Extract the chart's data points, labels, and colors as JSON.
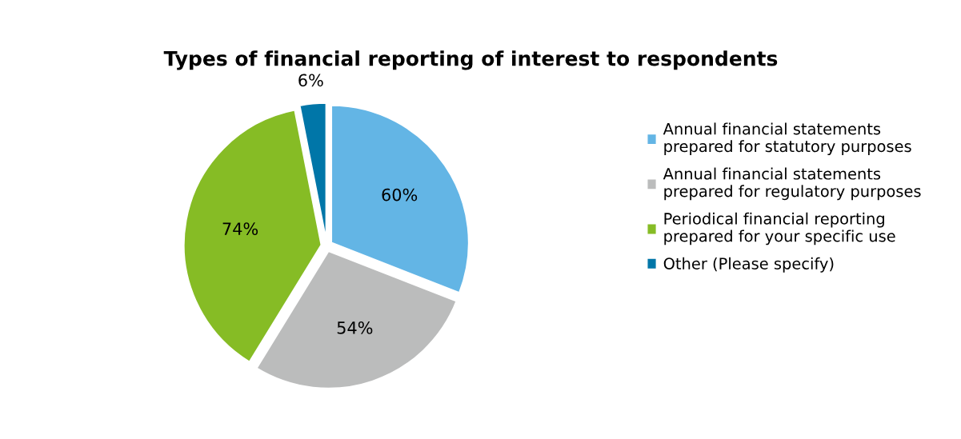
{
  "chart_data": {
    "type": "pie",
    "title": "Types of financial reporting of interest to respondents",
    "categories": [
      "Annual financial statements\nprepared for statutory purposes",
      "Annual financial statements\nprepared for regulatory purposes",
      "Periodical financial reporting\nprepared for your specific use",
      "Other (Please specify)"
    ],
    "values": [
      60,
      54,
      74,
      6
    ],
    "colors": [
      "#63b5e5",
      "#bbbcbc",
      "#86bc25",
      "#0076a8"
    ],
    "value_labels": [
      "60%",
      "54%",
      "74%",
      "6%"
    ],
    "legend": "right"
  }
}
